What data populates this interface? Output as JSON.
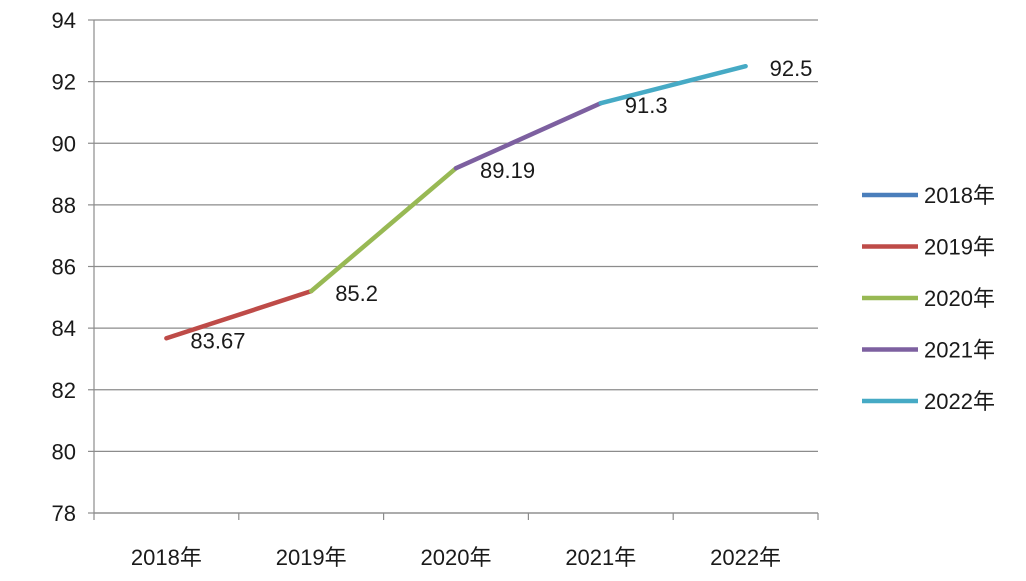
{
  "chart_data": {
    "type": "line",
    "title": "",
    "xlabel": "",
    "ylabel": "",
    "categories": [
      "2018年",
      "2019年",
      "2020年",
      "2021年",
      "2022年"
    ],
    "values": [
      83.67,
      85.2,
      89.19,
      91.3,
      92.5
    ],
    "data_labels": [
      "83.67",
      "85.2",
      "89.19",
      "91.3",
      "92.5"
    ],
    "ylim": [
      78,
      94
    ],
    "yticks": [
      78,
      80,
      82,
      84,
      86,
      88,
      90,
      92,
      94
    ],
    "ytick_labels": [
      "78",
      "80",
      "82",
      "84",
      "86",
      "88",
      "90",
      "92",
      "94"
    ],
    "grid": true,
    "legend_position": "right",
    "series": [
      {
        "name": "2018年",
        "color": "#4a7ebb"
      },
      {
        "name": "2019年",
        "color": "#be4b48"
      },
      {
        "name": "2020年",
        "color": "#98b954"
      },
      {
        "name": "2021年",
        "color": "#7d60a0"
      },
      {
        "name": "2022年",
        "color": "#46aac5"
      }
    ],
    "segments": [
      {
        "series": "2019年",
        "from": 0,
        "to": 1
      },
      {
        "series": "2020年",
        "from": 1,
        "to": 2
      },
      {
        "series": "2021年",
        "from": 2,
        "to": 3
      },
      {
        "series": "2022年",
        "from": 3,
        "to": 4
      }
    ]
  }
}
